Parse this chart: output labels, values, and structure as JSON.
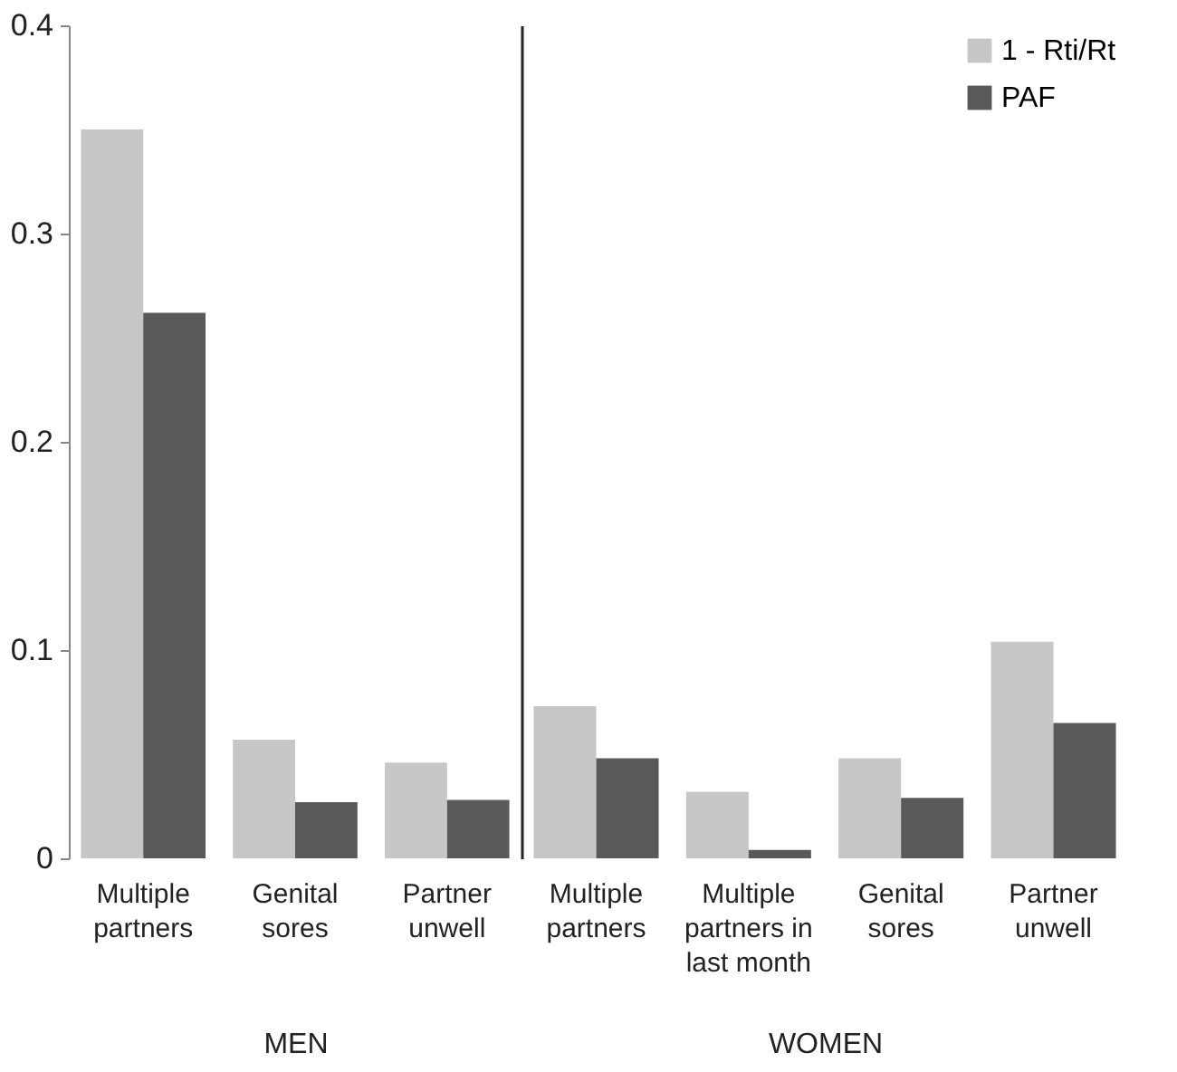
{
  "chart_data": [
    {
      "type": "bar",
      "xlabel": "MEN",
      "categories": [
        "Multiple\npartners",
        "Genital\nsores",
        "Partner\nunwell"
      ],
      "series": [
        {
          "color": "#c6c7c9",
          "values": [
            0.35,
            0.057,
            0.046
          ]
        },
        {
          "color": "#58595b",
          "values": [
            0.262,
            0.027,
            0.028
          ]
        }
      ],
      "ylim": [
        0,
        0.4
      ],
      "yticks": [
        0,
        0.1,
        0.2,
        0.3,
        0.4
      ],
      "grid": false,
      "legend": false
    },
    {
      "type": "bar",
      "xlabel": "WOMEN",
      "categories": [
        "Multiple\npartners",
        "Multiple\npartners in\nlast month",
        "Genital\nsores",
        "Partner\nunwell"
      ],
      "series": [
        {
          "name": "1 - Rti/Rt",
          "color": "#c6c7c9",
          "values": [
            0.073,
            0.032,
            0.048,
            0.104
          ]
        },
        {
          "name": "PAF",
          "color": "#58595b",
          "values": [
            0.048,
            0.004,
            0.029,
            0.065
          ]
        }
      ],
      "ylim": [
        0,
        0.4
      ],
      "yticks": [
        0,
        0.1,
        0.2,
        0.3,
        0.4
      ],
      "grid": false,
      "legend": "top right",
      "tick_labels": "x"
    }
  ]
}
